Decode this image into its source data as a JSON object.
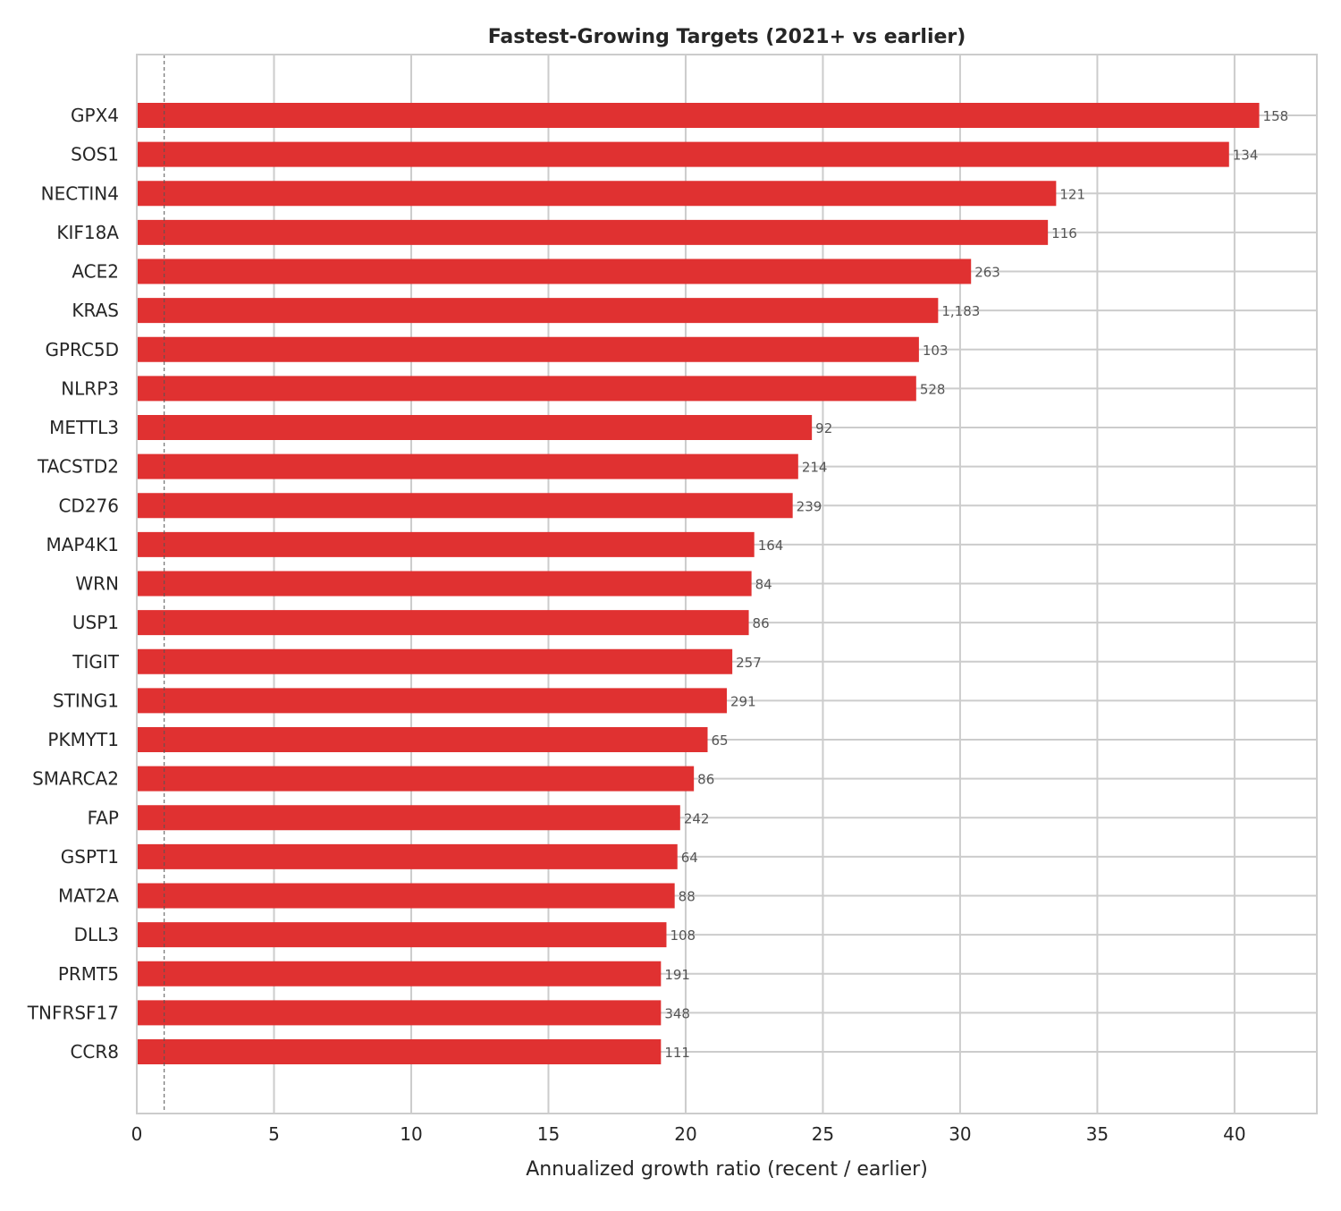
{
  "chart_data": {
    "type": "bar",
    "orientation": "horizontal",
    "title": "Fastest-Growing Targets (2021+ vs earlier)",
    "xlabel": "Annualized growth ratio (recent / earlier)",
    "ylabel": "",
    "xlim": [
      0,
      43
    ],
    "xticks": [
      "0",
      "5",
      "10",
      "15",
      "20",
      "25",
      "30",
      "35",
      "40"
    ],
    "grid": true,
    "reference_line": {
      "x": 1,
      "style": "dashed"
    },
    "bar_color": "#e03131",
    "categories": [
      "GPX4",
      "SOS1",
      "NECTIN4",
      "KIF18A",
      "ACE2",
      "KRAS",
      "GPRC5D",
      "NLRP3",
      "METTL3",
      "TACSTD2",
      "CD276",
      "MAP4K1",
      "WRN",
      "USP1",
      "TIGIT",
      "STING1",
      "PKMYT1",
      "SMARCA2",
      "FAP",
      "GSPT1",
      "MAT2A",
      "DLL3",
      "PRMT5",
      "TNFRSF17",
      "CCR8"
    ],
    "values": [
      40.9,
      39.8,
      33.5,
      33.2,
      30.4,
      29.2,
      28.5,
      28.4,
      24.6,
      24.1,
      23.9,
      22.5,
      22.4,
      22.3,
      21.7,
      21.5,
      20.8,
      20.3,
      19.8,
      19.7,
      19.6,
      19.3,
      19.1,
      19.1,
      19.1
    ],
    "data_labels": [
      "158",
      "134",
      "121",
      "116",
      "263",
      "1,183",
      "103",
      "528",
      "92",
      "214",
      "239",
      "164",
      "84",
      "86",
      "257",
      "291",
      "65",
      "86",
      "242",
      "64",
      "88",
      "108",
      "191",
      "348",
      "111"
    ]
  }
}
